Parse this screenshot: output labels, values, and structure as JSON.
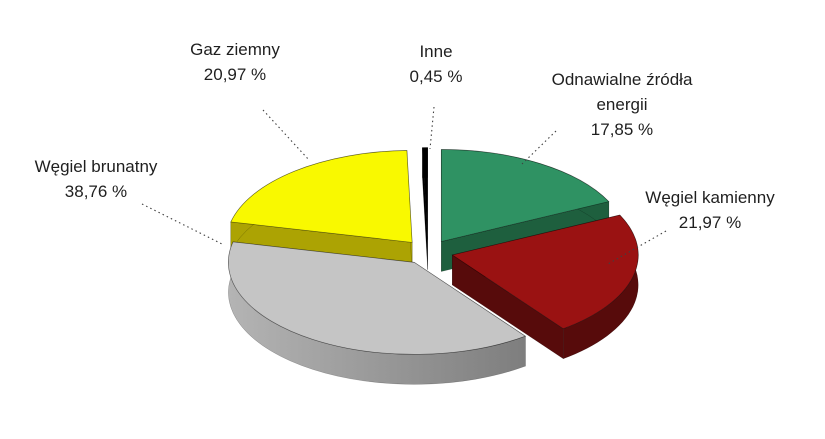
{
  "figure": {
    "background": "#FFFFFF",
    "text_color": "#1F1F1F",
    "leader_line_color": "#404040"
  },
  "chart_data": {
    "type": "pie",
    "style": "3d-exploded",
    "start_angle_deg": 0,
    "direction": "clockwise",
    "unit": "%",
    "legend_position": "none",
    "slices": [
      {
        "name": "odnawialne-zrodla-energii",
        "label_lines": [
          "Odnawialne źródła",
          "energii"
        ],
        "value": 17.85,
        "value_text": "17,85 %",
        "color": "#2F9263",
        "side_color": "#1E5F3E"
      },
      {
        "name": "wegiel-kamienny",
        "label_lines": [
          "Węgiel kamienny"
        ],
        "value": 21.97,
        "value_text": "21,97 %",
        "color": "#9A1212",
        "side_color": "#570B0B"
      },
      {
        "name": "wegiel-brunatny",
        "label_lines": [
          "Węgiel brunatny"
        ],
        "value": 38.76,
        "value_text": "38,76 %",
        "color": "#C5C5C5",
        "side_color": "#9A9A9A",
        "side_gradient": [
          "#B4B4B4",
          "#7E7E7E"
        ]
      },
      {
        "name": "gaz-ziemny",
        "label_lines": [
          "Gaz ziemny"
        ],
        "value": 20.97,
        "value_text": "20,97 %",
        "color": "#F9F900",
        "side_color": "#ACA303"
      },
      {
        "name": "inne",
        "label_lines": [
          "Inne"
        ],
        "value": 0.45,
        "value_text": "0,45 %",
        "color": "#000000",
        "side_color": "#000000"
      }
    ]
  }
}
